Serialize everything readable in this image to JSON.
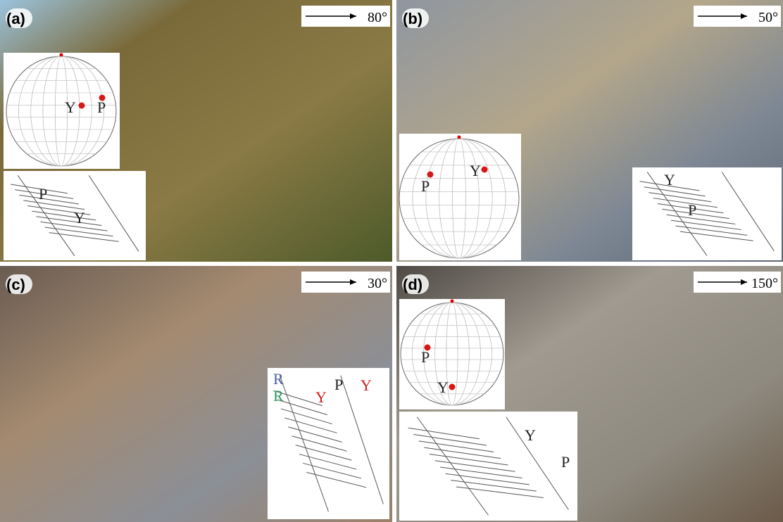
{
  "panels": [
    {
      "label": "(a)",
      "direction": "80°",
      "stereonet": {
        "labels": [
          "Y",
          "P"
        ]
      },
      "sketch": {
        "labels": [
          "P",
          "Y"
        ]
      }
    },
    {
      "label": "(b)",
      "direction": "50°",
      "stereonet": {
        "labels": [
          "P",
          "Y"
        ]
      },
      "sketch": {
        "labels": [
          "Y",
          "P"
        ]
      }
    },
    {
      "label": "(c)",
      "direction": "30°",
      "sketch": {
        "labels": [
          "R",
          "R",
          "Y",
          "P",
          "Y"
        ]
      }
    },
    {
      "label": "(d)",
      "direction": "150°",
      "stereonet": {
        "labels": [
          "P",
          "Y"
        ]
      },
      "sketch": {
        "labels": [
          "Y",
          "P"
        ]
      }
    }
  ]
}
